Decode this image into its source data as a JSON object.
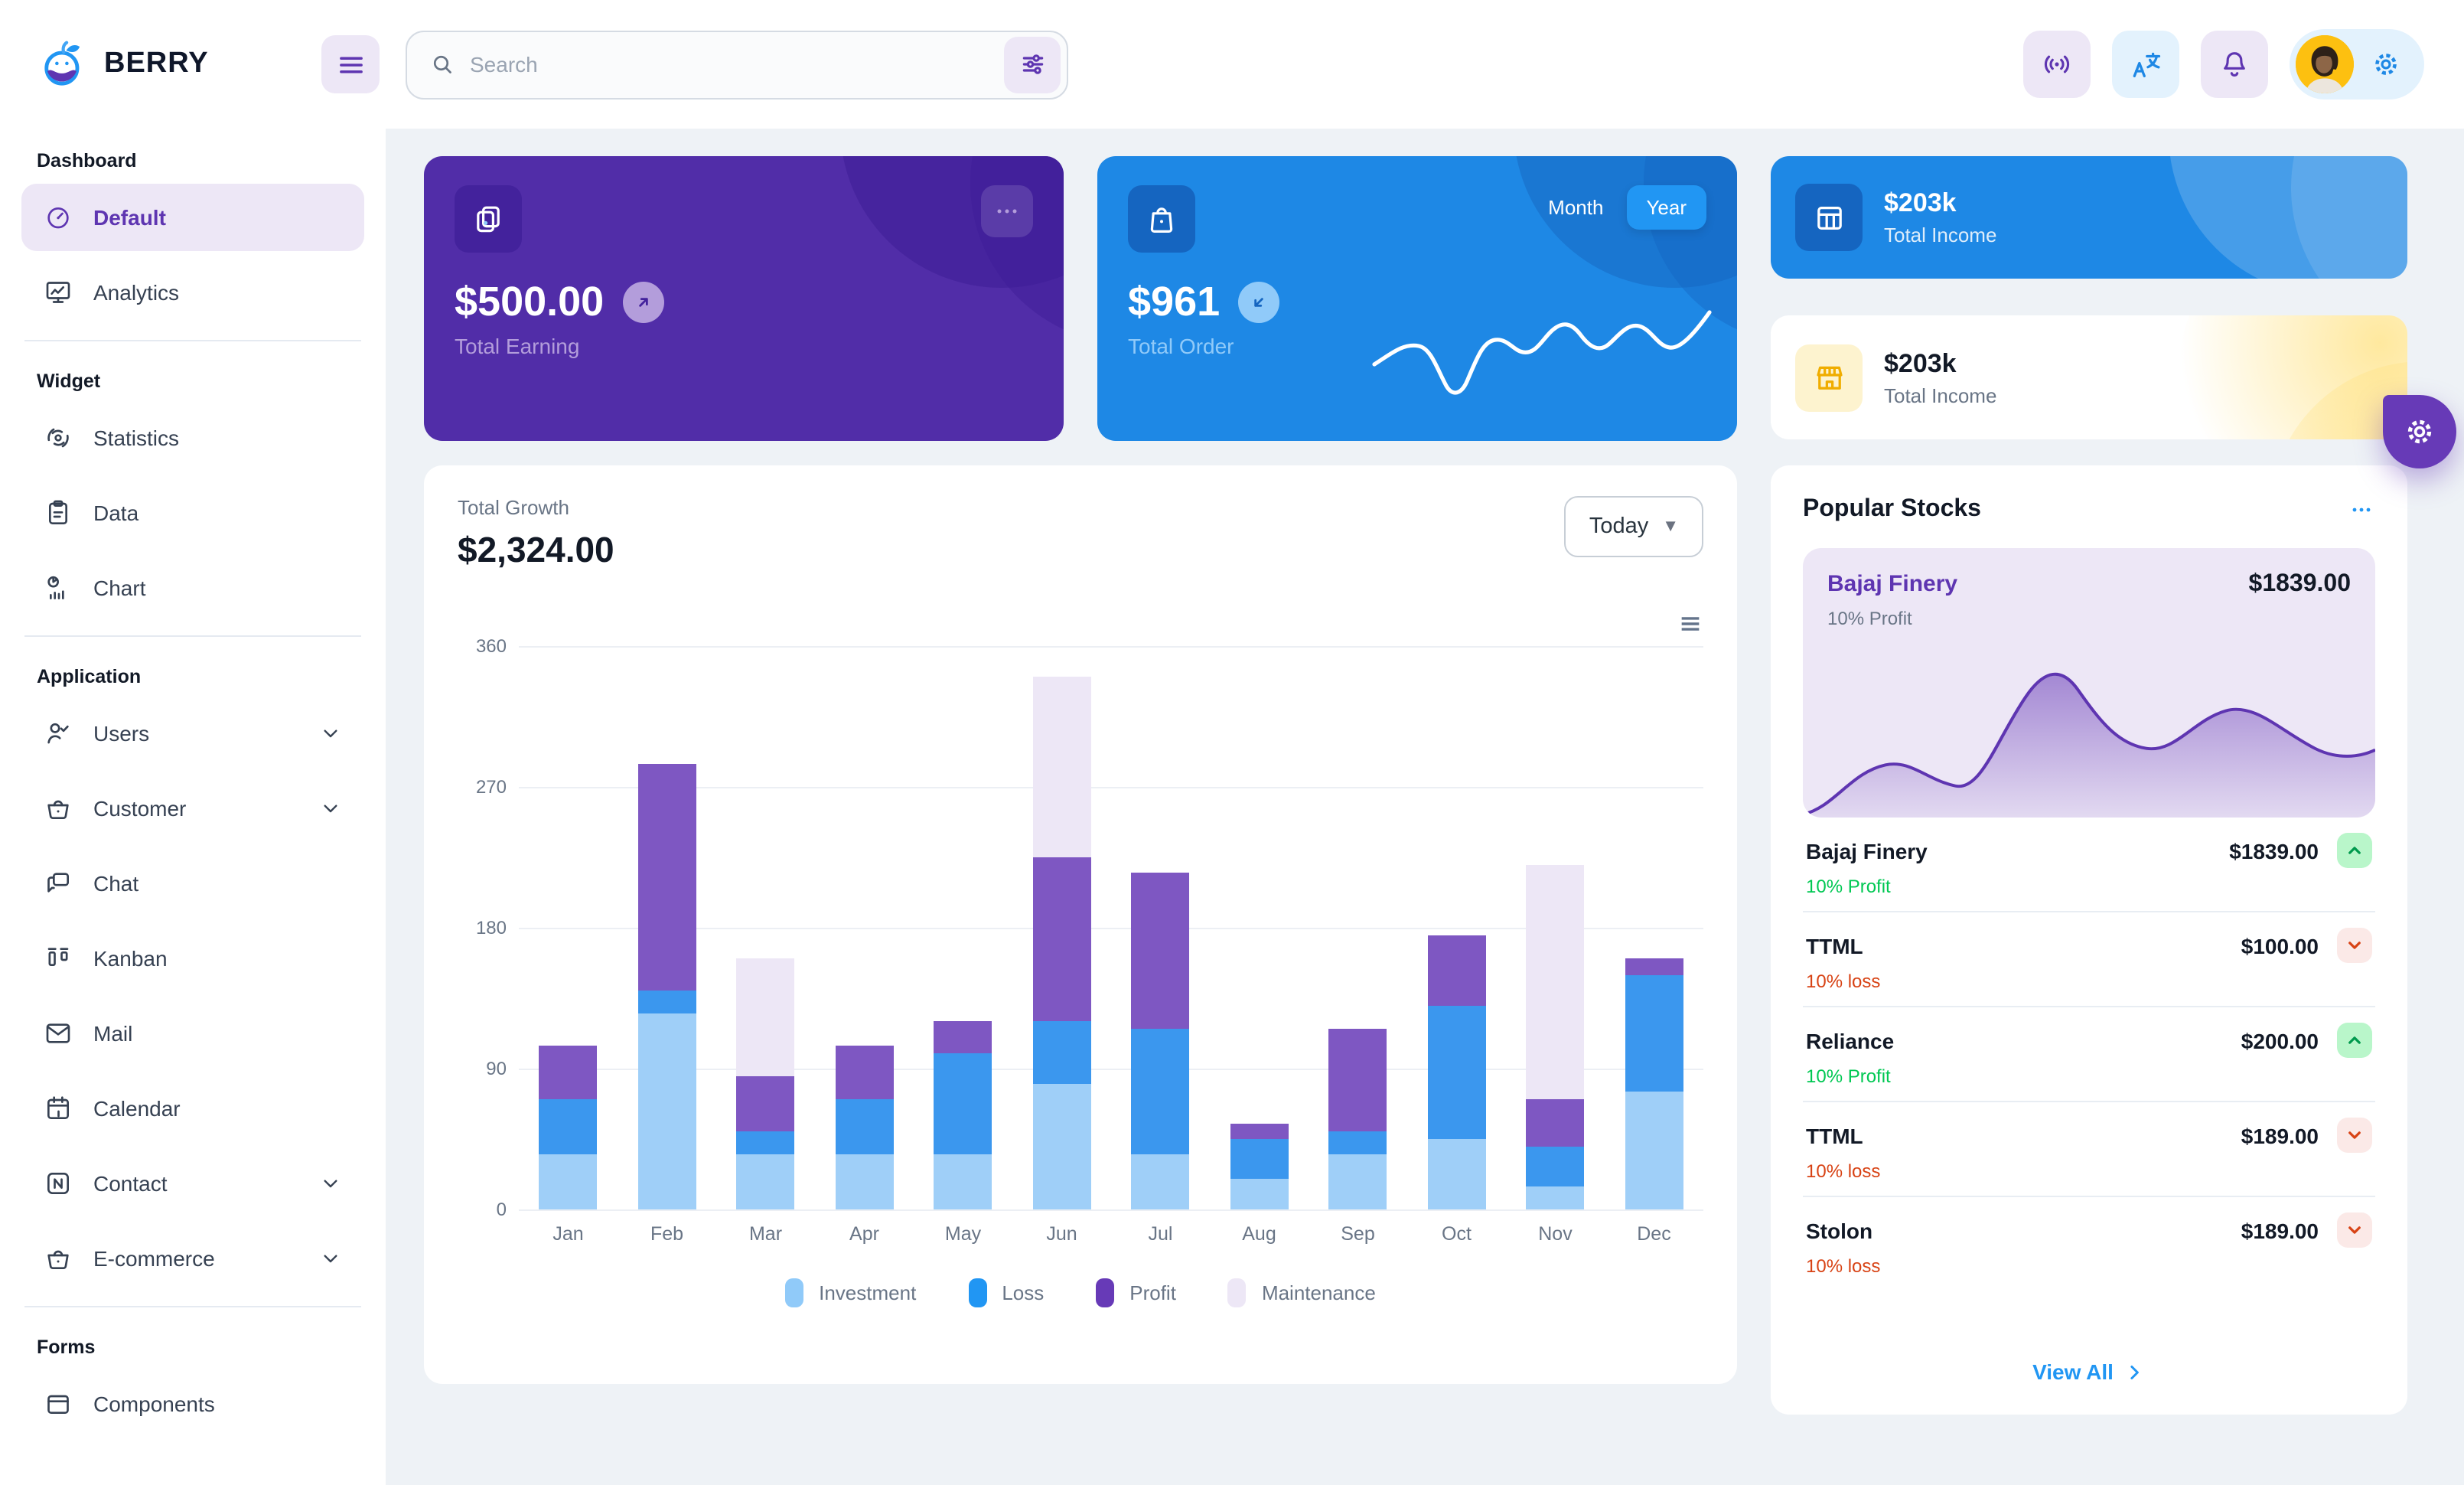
{
  "app": {
    "name": "Berry dashboard"
  },
  "colors": {
    "brand_purple": "#5e35b1",
    "brand_purple_dark": "#4527a0",
    "brand_blue": "#2196f3",
    "brand_blue_dark": "#1e88e5",
    "content_bg": "#eef2f6",
    "profit_green": "#00c853",
    "loss_orange": "#d84315",
    "warning_yellow": "#ffc107"
  },
  "header": {
    "logo_text": "BERRY",
    "search_placeholder": "Search",
    "icons": [
      "hamburger-icon",
      "search-icon",
      "sliders-icon",
      "broadcast-icon",
      "translate-icon",
      "bell-icon",
      "avatar",
      "gear-icon"
    ]
  },
  "sidebar": {
    "groups": [
      {
        "title": "Dashboard",
        "items": [
          {
            "label": "Default",
            "icon": "gauge-icon",
            "active": true
          },
          {
            "label": "Analytics",
            "icon": "monitor-chart-icon"
          }
        ]
      },
      {
        "title": "Widget",
        "items": [
          {
            "label": "Statistics",
            "icon": "statistics-icon"
          },
          {
            "label": "Data",
            "icon": "clipboard-icon"
          },
          {
            "label": "Chart",
            "icon": "pie-bars-icon"
          }
        ]
      },
      {
        "title": "Application",
        "items": [
          {
            "label": "Users",
            "icon": "user-check-icon",
            "chevron": true
          },
          {
            "label": "Customer",
            "icon": "basket-icon",
            "chevron": true
          },
          {
            "label": "Chat",
            "icon": "chat-icon"
          },
          {
            "label": "Kanban",
            "icon": "kanban-icon"
          },
          {
            "label": "Mail",
            "icon": "mail-icon"
          },
          {
            "label": "Calendar",
            "icon": "calendar-icon"
          },
          {
            "label": "Contact",
            "icon": "contact-icon",
            "chevron": true
          },
          {
            "label": "E-commerce",
            "icon": "basket-icon",
            "chevron": true
          }
        ]
      },
      {
        "title": "Forms",
        "items": [
          {
            "label": "Components",
            "icon": "components-icon"
          }
        ]
      }
    ]
  },
  "cards": {
    "earning": {
      "amount": "$500.00",
      "label": "Total Earning",
      "badge_icon": "arrow-up-right-icon",
      "menu_icon": "dots-icon"
    },
    "order": {
      "amount": "$961",
      "label": "Total Order",
      "badge_icon": "arrow-down-left-icon",
      "toggle_month": "Month",
      "toggle_year": "Year",
      "selected_range": "Year"
    },
    "income_dark": {
      "amount": "$203k",
      "label": "Total Income",
      "icon": "table-icon"
    },
    "income_light": {
      "amount": "$203k",
      "label": "Total Income",
      "icon": "storefront-icon"
    }
  },
  "growth": {
    "label": "Total Growth",
    "amount": "$2,324.00",
    "range_button": "Today"
  },
  "stocks": {
    "title": "Popular Stocks",
    "featured": {
      "name": "Bajaj Finery",
      "price": "$1839.00",
      "change": "10% Profit"
    },
    "rows": [
      {
        "name": "Bajaj Finery",
        "price": "$1839.00",
        "change": "10% Profit",
        "dir": "up"
      },
      {
        "name": "TTML",
        "price": "$100.00",
        "change": "10% loss",
        "dir": "down"
      },
      {
        "name": "Reliance",
        "price": "$200.00",
        "change": "10% Profit",
        "dir": "up"
      },
      {
        "name": "TTML",
        "price": "$189.00",
        "change": "10% loss",
        "dir": "down"
      },
      {
        "name": "Stolon",
        "price": "$189.00",
        "change": "10% loss",
        "dir": "down"
      }
    ],
    "view_all": "View All"
  },
  "chart_data": [
    {
      "id": "total-growth-bar",
      "type": "bar",
      "stacked": true,
      "title": "Total Growth",
      "value_label": "$2,324.00",
      "categories": [
        "Jan",
        "Feb",
        "Mar",
        "Apr",
        "May",
        "Jun",
        "Jul",
        "Aug",
        "Sep",
        "Oct",
        "Nov",
        "Dec"
      ],
      "series": [
        {
          "name": "Investment",
          "color": "#9fcff8",
          "legend_color": "#90caf9",
          "values": [
            35,
            125,
            35,
            35,
            35,
            80,
            35,
            20,
            35,
            45,
            15,
            75
          ]
        },
        {
          "name": "Loss",
          "color": "#3b97ee",
          "legend_color": "#2196f3",
          "values": [
            35,
            15,
            15,
            35,
            65,
            40,
            80,
            25,
            15,
            85,
            25,
            75
          ]
        },
        {
          "name": "Profit",
          "color": "#7e57c2",
          "legend_color": "#673ab7",
          "values": [
            35,
            145,
            35,
            35,
            20,
            105,
            100,
            10,
            65,
            45,
            30,
            10
          ]
        },
        {
          "name": "Maintenance",
          "color": "#ede7f6",
          "legend_color": "#ede7f6",
          "values": [
            0,
            0,
            75,
            0,
            0,
            115,
            0,
            0,
            0,
            0,
            150,
            0
          ]
        }
      ],
      "ylim": [
        0,
        360
      ],
      "yticks": [
        0,
        90,
        180,
        270,
        360
      ],
      "grid": "horizontal",
      "legend_position": "bottom"
    },
    {
      "id": "total-order-sparkline",
      "type": "line",
      "decorative": true,
      "values": [
        45,
        52,
        38,
        18,
        34,
        50,
        47,
        57,
        52,
        64,
        50,
        72,
        80
      ],
      "color": "#ffffff"
    },
    {
      "id": "bajaj-finery-area",
      "type": "area",
      "decorative": true,
      "values": [
        4,
        28,
        24,
        18,
        60,
        92,
        64,
        48,
        58,
        66,
        50,
        44
      ],
      "color": "#5e35b1"
    }
  ]
}
